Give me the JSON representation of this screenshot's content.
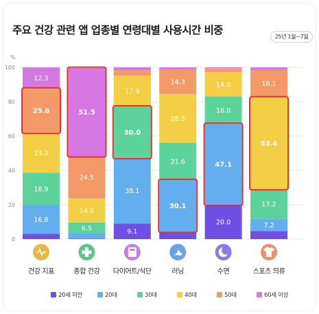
{
  "title": "주요 건강 관련 앱 업종별 연령대별 사용시간 비중",
  "period": "25년 1월~7월",
  "chart_data": {
    "type": "bar",
    "stacked": true,
    "ylabel": "%",
    "ylim": [
      0,
      100
    ],
    "yticks": [
      0,
      20,
      40,
      60,
      80,
      100
    ],
    "grid": true,
    "legend_position": "bottom",
    "categories": [
      "건강 지표",
      "종합 건강",
      "다이어트/식단",
      "러닝",
      "수면",
      "스포츠 의류"
    ],
    "category_icons": [
      "heart-pulse-icon",
      "medical-cross-icon",
      "scale-icon",
      "runner-icon",
      "moon-icon",
      "sportswear-icon"
    ],
    "series": [
      {
        "name": "20세 미만",
        "color": "#6f50e6",
        "values": [
          3.0,
          0.3,
          9.1,
          4.3,
          20.0,
          4.7
        ],
        "labels": [
          "",
          "",
          "9.1",
          "",
          "20.0",
          ""
        ]
      },
      {
        "name": "20대",
        "color": "#63aeee",
        "values": [
          16.8,
          2.9,
          38.1,
          30.1,
          47.1,
          7.2
        ],
        "labels": [
          "16.8",
          "",
          "38.1",
          "30.1",
          "47.1",
          "7.2"
        ]
      },
      {
        "name": "30대",
        "color": "#5cd39a",
        "values": [
          18.9,
          6.5,
          30.0,
          21.6,
          16.0,
          17.2
        ],
        "labels": [
          "18.9",
          "6.5",
          "30.0",
          "21.6",
          "16.0",
          "17.2"
        ]
      },
      {
        "name": "40대",
        "color": "#f4cf45",
        "values": [
          23.2,
          14.0,
          17.9,
          28.5,
          14.0,
          53.4
        ],
        "labels": [
          "23.2",
          "14.0",
          "17.9",
          "28.5",
          "14.0",
          "53.4"
        ]
      },
      {
        "name": "50대",
        "color": "#f39a68",
        "values": [
          25.8,
          24.5,
          3.2,
          14.3,
          2.4,
          16.1
        ],
        "labels": [
          "25.8",
          "24.5",
          "",
          "14.3",
          "",
          "16.1"
        ]
      },
      {
        "name": "60세 이상",
        "color": "#d677e3",
        "values": [
          12.3,
          51.5,
          1.7,
          1.2,
          0.5,
          1.4
        ],
        "labels": [
          "12.3",
          "51.5",
          "",
          "",
          "",
          ""
        ]
      }
    ],
    "highlights": [
      {
        "category": "건강 지표",
        "series": "50대"
      },
      {
        "category": "종합 건강",
        "series": "60세 이상"
      },
      {
        "category": "다이어트/식단",
        "series": "30대"
      },
      {
        "category": "러닝",
        "series": "20대"
      },
      {
        "category": "수면",
        "series": "20대"
      },
      {
        "category": "스포츠 의류",
        "series": "40대"
      }
    ]
  }
}
